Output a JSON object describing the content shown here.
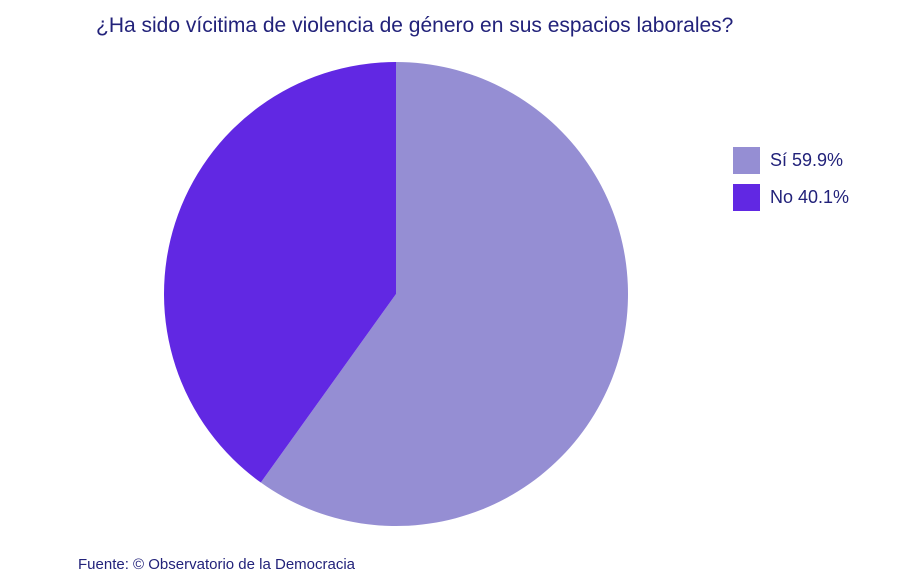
{
  "chart_data": {
    "type": "pie",
    "title": "¿Ha sido vícitima de violencia de género en sus espacios laborales?",
    "slices": [
      {
        "label": "Sí 59.9%",
        "value": 59.9,
        "color": "#958ed3"
      },
      {
        "label": "No 40.1%",
        "value": 40.1,
        "color": "#6128e3"
      }
    ],
    "legend_position": "right",
    "source": "Fuente: © Observatorio de la Democracia"
  }
}
